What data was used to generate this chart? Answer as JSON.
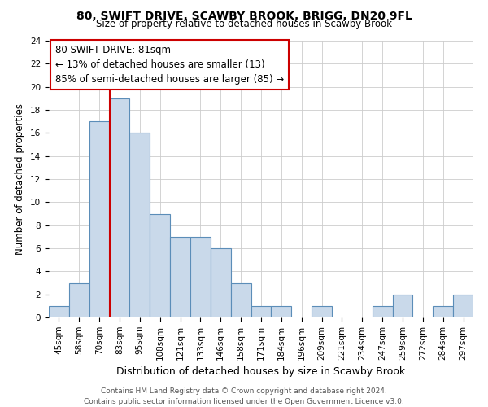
{
  "title": "80, SWIFT DRIVE, SCAWBY BROOK, BRIGG, DN20 9FL",
  "subtitle": "Size of property relative to detached houses in Scawby Brook",
  "xlabel": "Distribution of detached houses by size in Scawby Brook",
  "ylabel": "Number of detached properties",
  "bin_labels": [
    "45sqm",
    "58sqm",
    "70sqm",
    "83sqm",
    "95sqm",
    "108sqm",
    "121sqm",
    "133sqm",
    "146sqm",
    "158sqm",
    "171sqm",
    "184sqm",
    "196sqm",
    "209sqm",
    "221sqm",
    "234sqm",
    "247sqm",
    "259sqm",
    "272sqm",
    "284sqm",
    "297sqm"
  ],
  "bar_heights": [
    1,
    3,
    17,
    19,
    16,
    9,
    7,
    7,
    6,
    3,
    1,
    1,
    0,
    1,
    0,
    0,
    1,
    2,
    0,
    1,
    2
  ],
  "bar_color": "#c9d9ea",
  "bar_edge_color": "#5b8db8",
  "vline_x_index": 3,
  "vline_color": "#cc0000",
  "annotation_line1": "80 SWIFT DRIVE: 81sqm",
  "annotation_line2": "← 13% of detached houses are smaller (13)",
  "annotation_line3": "85% of semi-detached houses are larger (85) →",
  "annotation_box_color": "#ffffff",
  "annotation_box_edge": "#cc0000",
  "ylim": [
    0,
    24
  ],
  "yticks": [
    0,
    2,
    4,
    6,
    8,
    10,
    12,
    14,
    16,
    18,
    20,
    22,
    24
  ],
  "footer_line1": "Contains HM Land Registry data © Crown copyright and database right 2024.",
  "footer_line2": "Contains public sector information licensed under the Open Government Licence v3.0.",
  "bg_color": "#ffffff",
  "grid_color": "#cccccc",
  "title_fontsize": 10,
  "subtitle_fontsize": 8.5,
  "ylabel_fontsize": 8.5,
  "xlabel_fontsize": 9,
  "tick_fontsize": 7.5,
  "annotation_fontsize": 8.5,
  "footer_fontsize": 6.5
}
